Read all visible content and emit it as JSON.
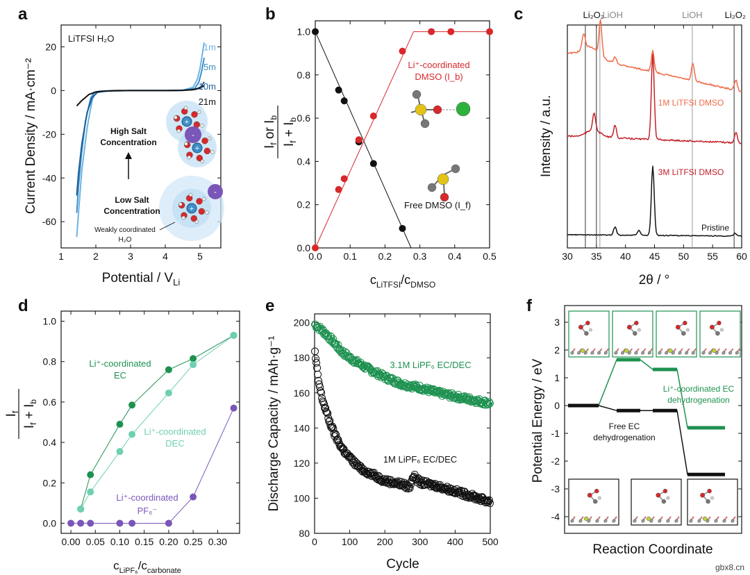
{
  "watermark": "gbx8.cn",
  "chart_data": [
    {
      "panel": "a",
      "type": "line",
      "xlabel": "Potential / V",
      "xlabel_sub": "Li",
      "ylabel": "Current Density / mA·cm⁻²",
      "xlim": [
        1,
        5.6
      ],
      "ylim": [
        -72,
        30
      ],
      "xticks": [
        1,
        2,
        3,
        4,
        5
      ],
      "yticks": [
        -60,
        -40,
        -20,
        0,
        20
      ],
      "title_text": "LiTFSI H₂O",
      "series": [
        {
          "name": "1m",
          "color": "#6ab4e3",
          "x": [
            1.45,
            1.52,
            1.6,
            1.75,
            1.9,
            2.0,
            2.2,
            2.5,
            3,
            3.5,
            4,
            4.5,
            4.8,
            4.92,
            5.0,
            5.06,
            5.12
          ],
          "y": [
            -67,
            -52,
            -36,
            -17,
            -4,
            -1,
            -0.4,
            -0.2,
            0,
            0,
            0,
            0.2,
            1.5,
            5,
            10,
            16,
            22
          ]
        },
        {
          "name": "5m",
          "color": "#3d8fc9",
          "x": [
            1.45,
            1.5,
            1.58,
            1.7,
            1.85,
            1.95,
            2.1,
            2.5,
            3,
            3.5,
            4,
            4.5,
            4.85,
            4.97,
            5.05,
            5.12
          ],
          "y": [
            -56,
            -44,
            -30,
            -14,
            -3.5,
            -1,
            -0.3,
            -0.1,
            0,
            0,
            0,
            0.1,
            1,
            4,
            9,
            15
          ]
        },
        {
          "name": "10m",
          "color": "#1f5f99",
          "x": [
            1.45,
            1.5,
            1.6,
            1.75,
            1.9,
            2.05,
            2.3,
            3,
            3.5,
            4,
            4.5,
            4.9,
            5.05,
            5.12
          ],
          "y": [
            -48,
            -38,
            -24,
            -10,
            -3,
            -0.8,
            -0.2,
            0,
            0,
            0,
            0.1,
            0.6,
            2,
            4
          ]
        },
        {
          "name": "21m",
          "color": "#111111",
          "x": [
            1.45,
            1.6,
            1.8,
            2.0,
            2.3,
            2.6,
            3,
            3.5,
            4,
            4.5,
            4.8,
            5.0,
            5.12
          ],
          "y": [
            -7,
            -4.5,
            -1.8,
            -0.6,
            -0.2,
            0,
            0,
            0,
            0,
            0.1,
            0.4,
            1.2,
            2.2
          ]
        }
      ],
      "series_labels": [
        "1m",
        "5m",
        "10m",
        "21m"
      ],
      "annotations": {
        "high": [
          "High Salt",
          "Concentration"
        ],
        "low": [
          "Low Salt",
          "Concentration"
        ],
        "weak": [
          "Weakly coordinated",
          "H₂O"
        ]
      }
    },
    {
      "panel": "b",
      "type": "scatter",
      "xlabel": "c",
      "xlabel_sub1": "LiTFSI",
      "xlabel_mid": "/c",
      "xlabel_sub2": "DMSO",
      "ylabel": "I_f or I_b / (I_f + I_b)",
      "xlim": [
        0,
        0.5
      ],
      "ylim": [
        0,
        1.05
      ],
      "xticks": [
        0.0,
        0.1,
        0.2,
        0.3,
        0.4,
        0.5
      ],
      "yticks": [
        0.0,
        0.2,
        0.4,
        0.6,
        0.8,
        1.0
      ],
      "series": [
        {
          "name": "Free DMSO (I_f)",
          "color": "#111111",
          "x": [
            0,
            0.067,
            0.083,
            0.125,
            0.167,
            0.25
          ],
          "y": [
            1.0,
            0.73,
            0.68,
            0.49,
            0.39,
            0.09
          ],
          "fit": [
            [
              0,
              1.0
            ],
            [
              0.275,
              0.0
            ]
          ]
        },
        {
          "name": "Li⁺-coordinated DMSO (I_b)",
          "color": "#d8282b",
          "x": [
            0,
            0.067,
            0.083,
            0.125,
            0.167,
            0.25,
            0.333,
            0.389,
            0.5
          ],
          "y": [
            0,
            0.27,
            0.32,
            0.5,
            0.61,
            0.91,
            1.0,
            1.0,
            1.0
          ],
          "fit": [
            [
              0,
              0
            ],
            [
              0.282,
              1.0
            ],
            [
              0.5,
              1.0
            ]
          ]
        }
      ],
      "label_red": [
        "Li⁺-coordinated",
        "DMSO (I_b)"
      ],
      "label_black": "Free DMSO (I_f)"
    },
    {
      "panel": "c",
      "type": "line",
      "xlabel": "2θ / °",
      "ylabel": "Intensity / a.u.",
      "xlim": [
        30,
        60
      ],
      "xticks": [
        30,
        35,
        40,
        45,
        50,
        55,
        60
      ],
      "refs": [
        {
          "label": "Li₂O₂",
          "x": [
            33.1,
            35.0,
            58.7
          ],
          "color": "#333333"
        },
        {
          "label": "LiOH",
          "x": [
            35.6,
            51.5
          ],
          "color": "#999999"
        }
      ],
      "ref_labels": [
        "Li₂O₂",
        "LiOH",
        "LiOH",
        "Li₂O₂"
      ],
      "series": [
        {
          "name": "1M LiTFSI DMSO",
          "color": "#ef6b47",
          "peaks": [
            [
              32.8,
              18
            ],
            [
              35.7,
              40
            ],
            [
              38.2,
              7
            ],
            [
              44.7,
              24
            ],
            [
              51.6,
              20
            ],
            [
              59.0,
              12
            ]
          ],
          "base_start": 0.78,
          "base_end": 0.52
        },
        {
          "name": "3M LiTFSI DMSO",
          "color": "#c42028",
          "peaks": [
            [
              34.6,
              20
            ],
            [
              38.2,
              14
            ],
            [
              44.7,
              95
            ],
            [
              59.0,
              12
            ]
          ],
          "base_start": 0.45,
          "base_end": 0.2
        },
        {
          "name": "Pristine",
          "color": "#111111",
          "peaks": [
            [
              38.2,
              12
            ],
            [
              42.3,
              7
            ],
            [
              44.7,
              100
            ],
            [
              58.9,
              4
            ]
          ],
          "base_start": 0.0,
          "base_end": 0.0
        }
      ]
    },
    {
      "panel": "d",
      "type": "scatter",
      "xlabel": "c",
      "xlabel_sub1": "LiPF₆",
      "xlabel_mid": "/c",
      "xlabel_sub2": "carbonate",
      "ylabel": "I_f / (I_f + I_b)",
      "xlim": [
        -0.02,
        0.345
      ],
      "ylim": [
        -0.05,
        1.05
      ],
      "xticks": [
        0.0,
        0.05,
        0.1,
        0.15,
        0.2,
        0.25,
        0.3
      ],
      "yticks": [
        0.0,
        0.2,
        0.4,
        0.6,
        0.8,
        1.0
      ],
      "series": [
        {
          "name": "Li⁺-coordinated EC",
          "color": "#1e9150",
          "x": [
            0.02,
            0.04,
            0.1,
            0.125,
            0.2,
            0.25,
            0.333
          ],
          "y": [
            0.07,
            0.24,
            0.49,
            0.585,
            0.76,
            0.815,
            0.93
          ]
        },
        {
          "name": "Li⁺-coordinated DEC",
          "color": "#6fd0b1",
          "x": [
            0.02,
            0.04,
            0.1,
            0.125,
            0.2,
            0.25,
            0.333
          ],
          "y": [
            0.07,
            0.155,
            0.355,
            0.44,
            0.645,
            0.785,
            0.93
          ]
        },
        {
          "name": "Li⁺-coordinated PF₆⁻",
          "color": "#7a56b8",
          "x": [
            0.0,
            0.02,
            0.04,
            0.1,
            0.125,
            0.2,
            0.25,
            0.333
          ],
          "y": [
            0,
            0,
            0,
            0,
            0,
            0,
            0.13,
            0.57
          ]
        }
      ],
      "label_ec": [
        "Li⁺-coordinated",
        "EC"
      ],
      "label_dec": [
        "Li⁺-coordinated",
        "DEC"
      ],
      "label_pf": [
        "Li⁺-coordinated",
        "PF₆⁻"
      ]
    },
    {
      "panel": "e",
      "type": "scatter",
      "xlabel": "Cycle",
      "ylabel": "Discharge Capacity / mAh·g⁻¹",
      "xlim": [
        0,
        500
      ],
      "ylim": [
        80,
        205
      ],
      "xticks": [
        0,
        100,
        200,
        300,
        400,
        500
      ],
      "yticks": [
        80,
        100,
        120,
        140,
        160,
        180,
        200
      ],
      "series": [
        {
          "name": "3.1M LiPF₆ EC/DEC",
          "color": "#1e9150",
          "x": [
            1,
            25,
            50,
            75,
            100,
            150,
            200,
            250,
            300,
            350,
            400,
            450,
            500
          ],
          "y": [
            199,
            195,
            190,
            184,
            180,
            174,
            169,
            165,
            163,
            160,
            158,
            156,
            154
          ]
        },
        {
          "name": "1M LiPF₆ EC/DEC",
          "color": "#111111",
          "x": [
            1,
            10,
            20,
            40,
            60,
            80,
            100,
            130,
            160,
            200,
            250,
            270,
            280,
            300,
            350,
            400,
            450,
            500
          ],
          "y": [
            183,
            168,
            158,
            145,
            135,
            128,
            123,
            117,
            114,
            110,
            108,
            106,
            113,
            109,
            107,
            104,
            101,
            98
          ]
        }
      ],
      "label_top": "3.1M LiPF₆ EC/DEC",
      "label_bottom": "1M LiPF₆ EC/DEC"
    },
    {
      "panel": "f",
      "type": "line",
      "xlabel": "Reaction Coordinate",
      "ylabel": "Potential Energy / eV",
      "ylim": [
        -4.6,
        3.6
      ],
      "yticks": [
        -4,
        -3,
        -2,
        -1,
        0,
        1,
        2,
        3
      ],
      "series": [
        {
          "name": "Li⁺-coordinated EC dehydrogenation",
          "color": "#1e9150",
          "levels": [
            0,
            1.65,
            1.3,
            -0.8
          ]
        },
        {
          "name": "Free EC dehydrogenation",
          "color": "#111111",
          "levels": [
            0,
            -0.18,
            -0.18,
            -2.48
          ]
        }
      ],
      "label_green": [
        "Li⁺-coordinated EC",
        "dehydrogenation"
      ],
      "label_black": [
        "Free EC",
        "dehydrogenation"
      ]
    }
  ],
  "panel_letters": [
    "a",
    "b",
    "c",
    "d",
    "e",
    "f"
  ]
}
